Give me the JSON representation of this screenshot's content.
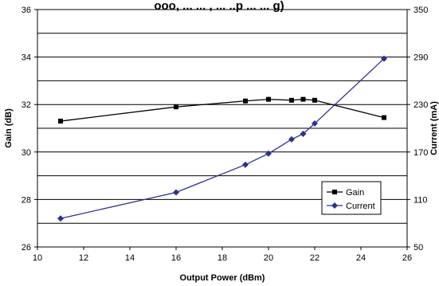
{
  "chart_data": {
    "type": "line",
    "title": "ooo, ... ... , ... ..p ... ... g)",
    "xlabel": "Output Power (dBm)",
    "ylabel": "Gain (dB)",
    "y2label": "Current (mA)",
    "xlim": [
      10,
      26
    ],
    "ylim": [
      26,
      36
    ],
    "y2lim": [
      50,
      350
    ],
    "xticks": [
      10,
      12,
      14,
      16,
      18,
      20,
      22,
      24,
      26
    ],
    "yticks": [
      26,
      28,
      30,
      32,
      34,
      36
    ],
    "y2ticks": [
      50,
      110,
      170,
      230,
      290,
      350
    ],
    "grid": "horizontal",
    "legend_position": "lower-right",
    "series": [
      {
        "name": "Gain",
        "axis": "left",
        "color": "#000000",
        "marker": "square",
        "x": [
          11,
          16,
          19,
          20,
          21,
          21.5,
          22,
          25
        ],
        "y": [
          31.3,
          31.9,
          32.15,
          32.22,
          32.18,
          32.22,
          32.18,
          31.45
        ]
      },
      {
        "name": "Current",
        "axis": "right",
        "color": "#2e3192",
        "marker": "diamond",
        "x": [
          11,
          16,
          19,
          20,
          21,
          21.5,
          22,
          25
        ],
        "y": [
          86,
          119,
          154,
          168,
          186,
          193,
          206,
          288
        ]
      }
    ]
  }
}
